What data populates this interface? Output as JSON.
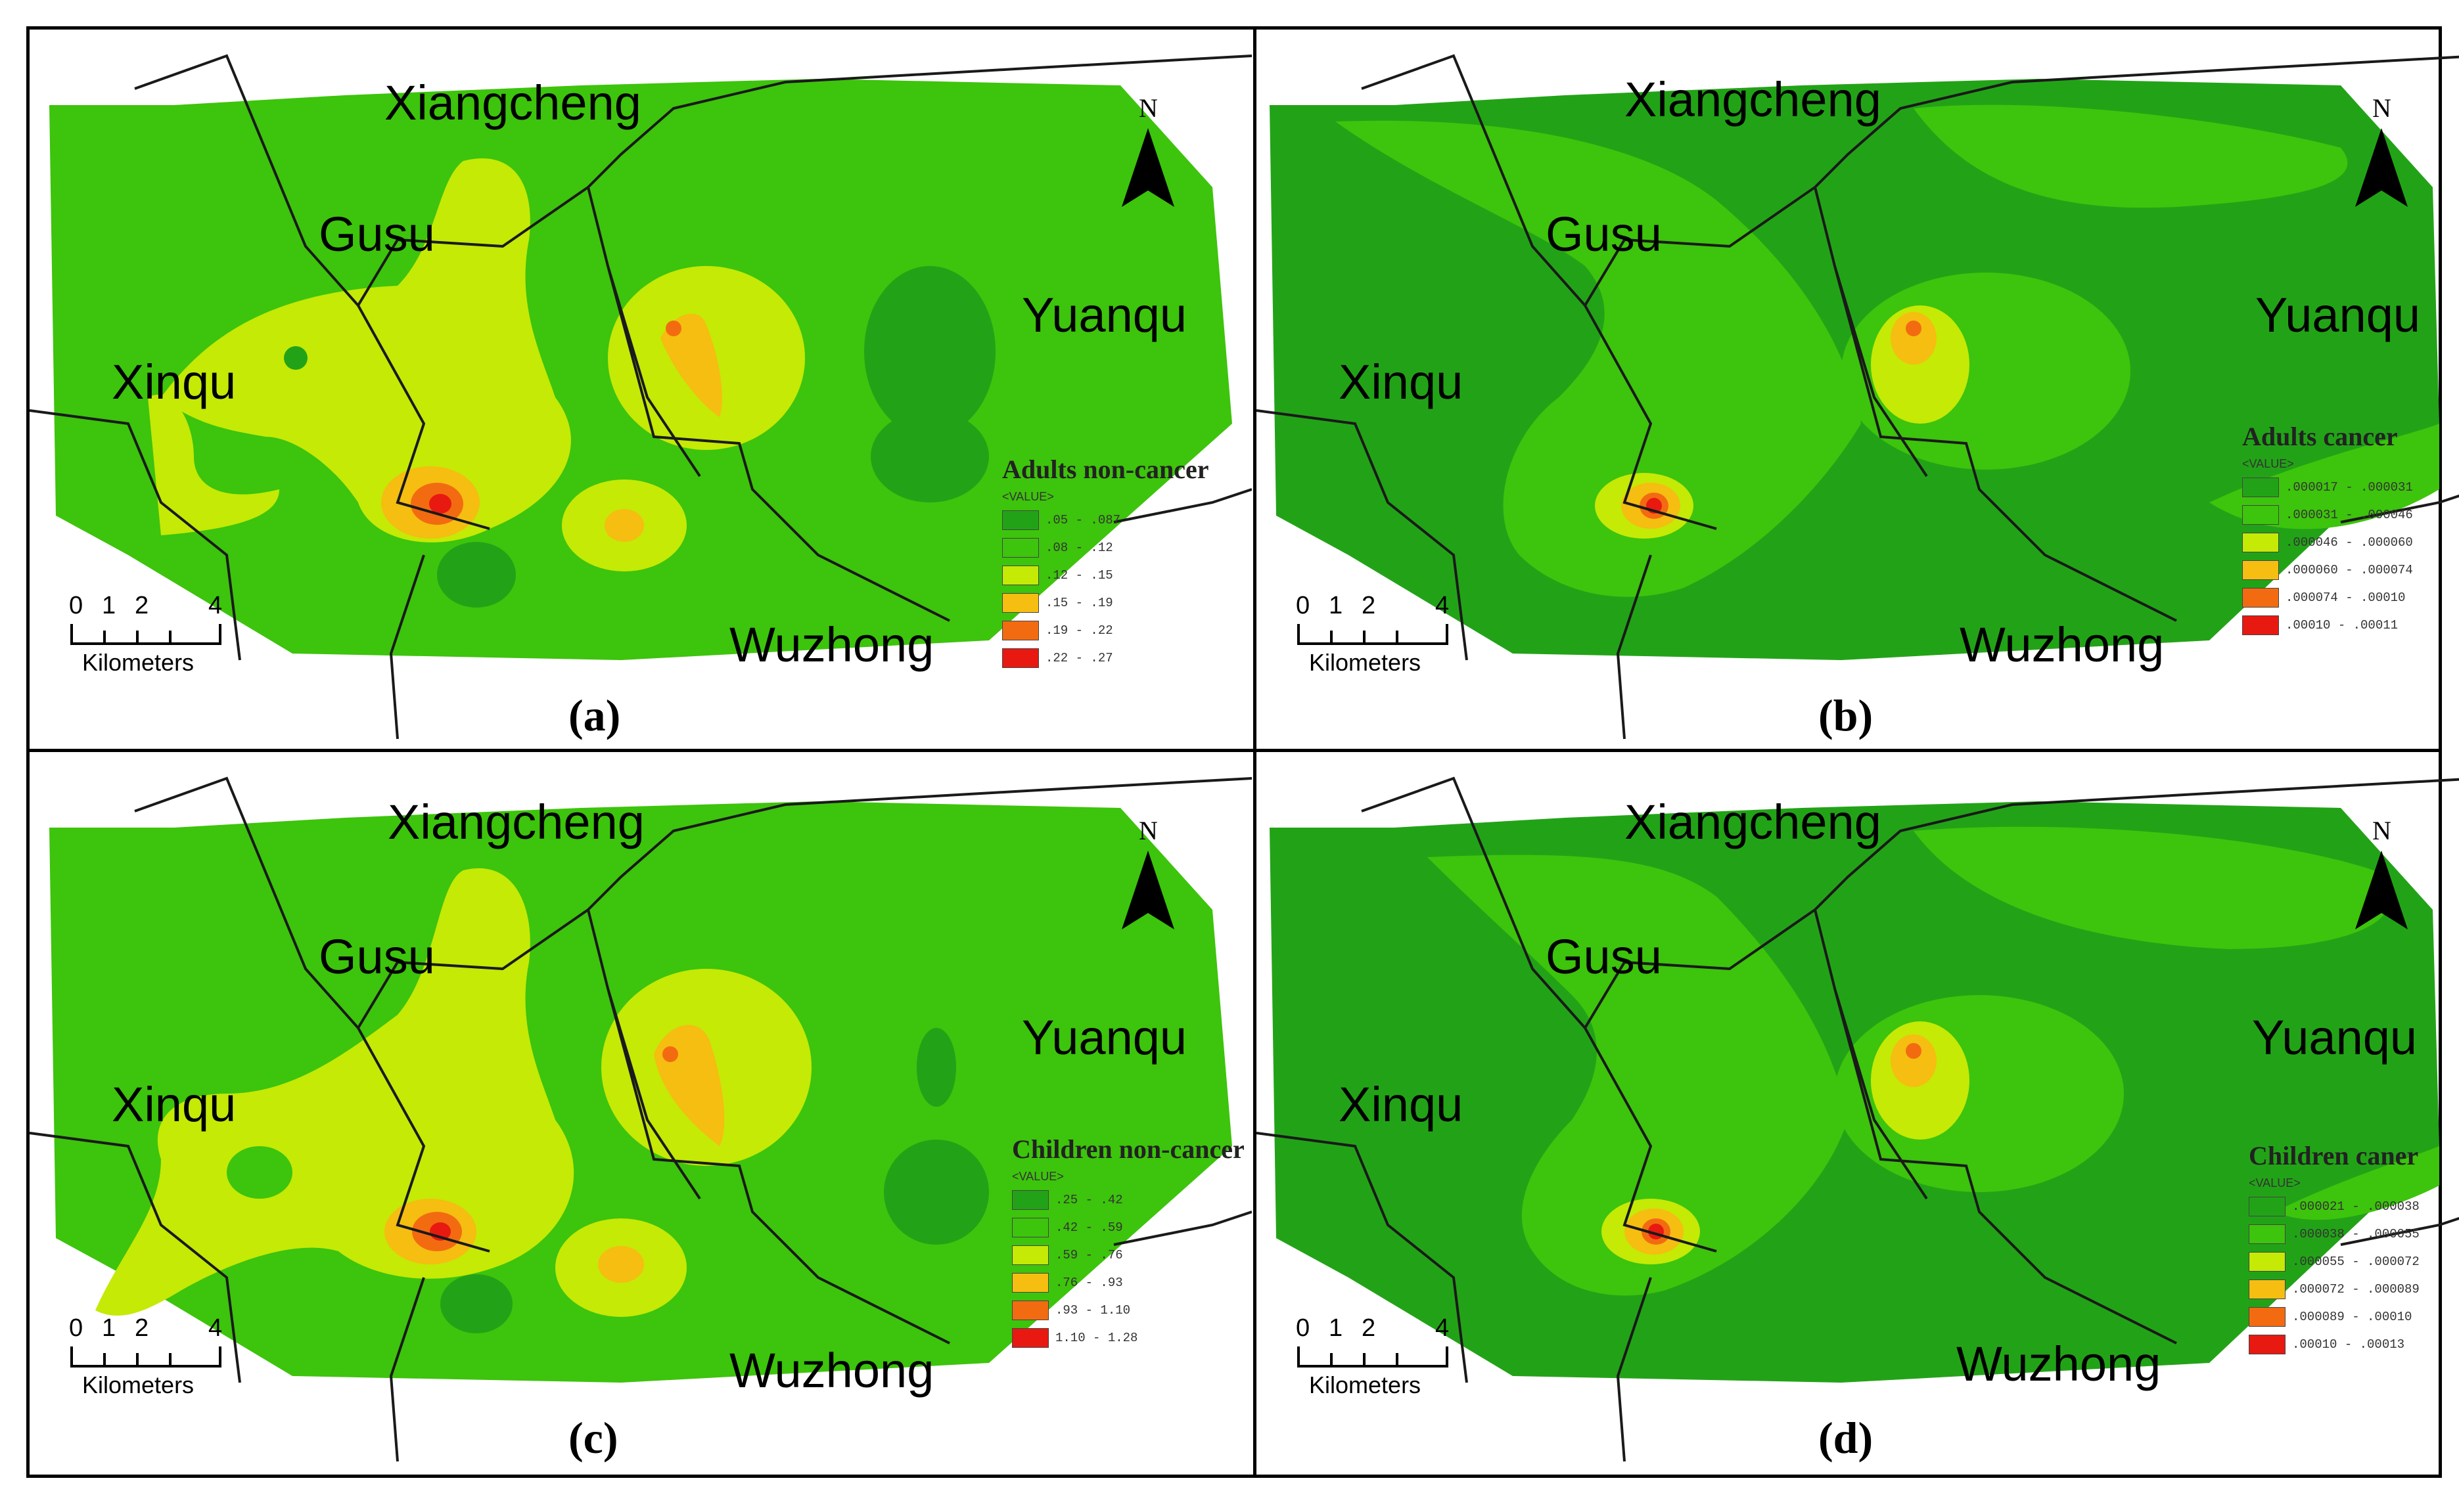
{
  "colors": {
    "dark_green": "#22a317",
    "mid_green": "#3dc40c",
    "yellow_green": "#c4ea06",
    "orange": "#f5be11",
    "deep_orange": "#f36b10",
    "red": "#e81911",
    "boundary": "#1a1a1a"
  },
  "regions": {
    "xiangcheng": "Xiangcheng",
    "gusu": "Gusu",
    "xinqu": "Xinqu",
    "yuanqu": "Yuanqu",
    "wuzhong": "Wuzhong"
  },
  "north_arrow": {
    "letter": "N",
    "icon": "north-arrow-icon"
  },
  "scale_bar": {
    "ticks": [
      "0",
      "1",
      "2",
      "4"
    ],
    "unit": "Kilometers"
  },
  "panels": [
    {
      "letter": "(a)",
      "legend": {
        "title": "Adults non-cancer",
        "field": "<VALUE>",
        "classes": [
          ".05 - .087",
          ".08 - .12",
          ".12 - .15",
          ".15 - .19",
          ".19 - .22",
          ".22 - .27"
        ]
      }
    },
    {
      "letter": "(b)",
      "legend": {
        "title": "Adults cancer",
        "field": "<VALUE>",
        "classes": [
          ".000017 - .000031",
          ".000031 - .000046",
          ".000046 - .000060",
          ".000060 - .000074",
          ".000074 - .00010",
          ".00010 - .00011"
        ]
      }
    },
    {
      "letter": "(c)",
      "legend": {
        "title": "Children non-cancer",
        "field": "<VALUE>",
        "classes": [
          ".25 - .42",
          ".42 - .59",
          ".59 - .76",
          ".76 - .93",
          ".93 - 1.10",
          "1.10 - 1.28"
        ]
      }
    },
    {
      "letter": "(d)",
      "legend": {
        "title": "Children caner",
        "field": "<VALUE>",
        "classes": [
          ".000021 - .000038",
          ".000038 - .000055",
          ".000055 - .000072",
          ".000072 - .000089",
          ".000089 - .00010",
          ".00010 - .00013"
        ]
      }
    }
  ]
}
